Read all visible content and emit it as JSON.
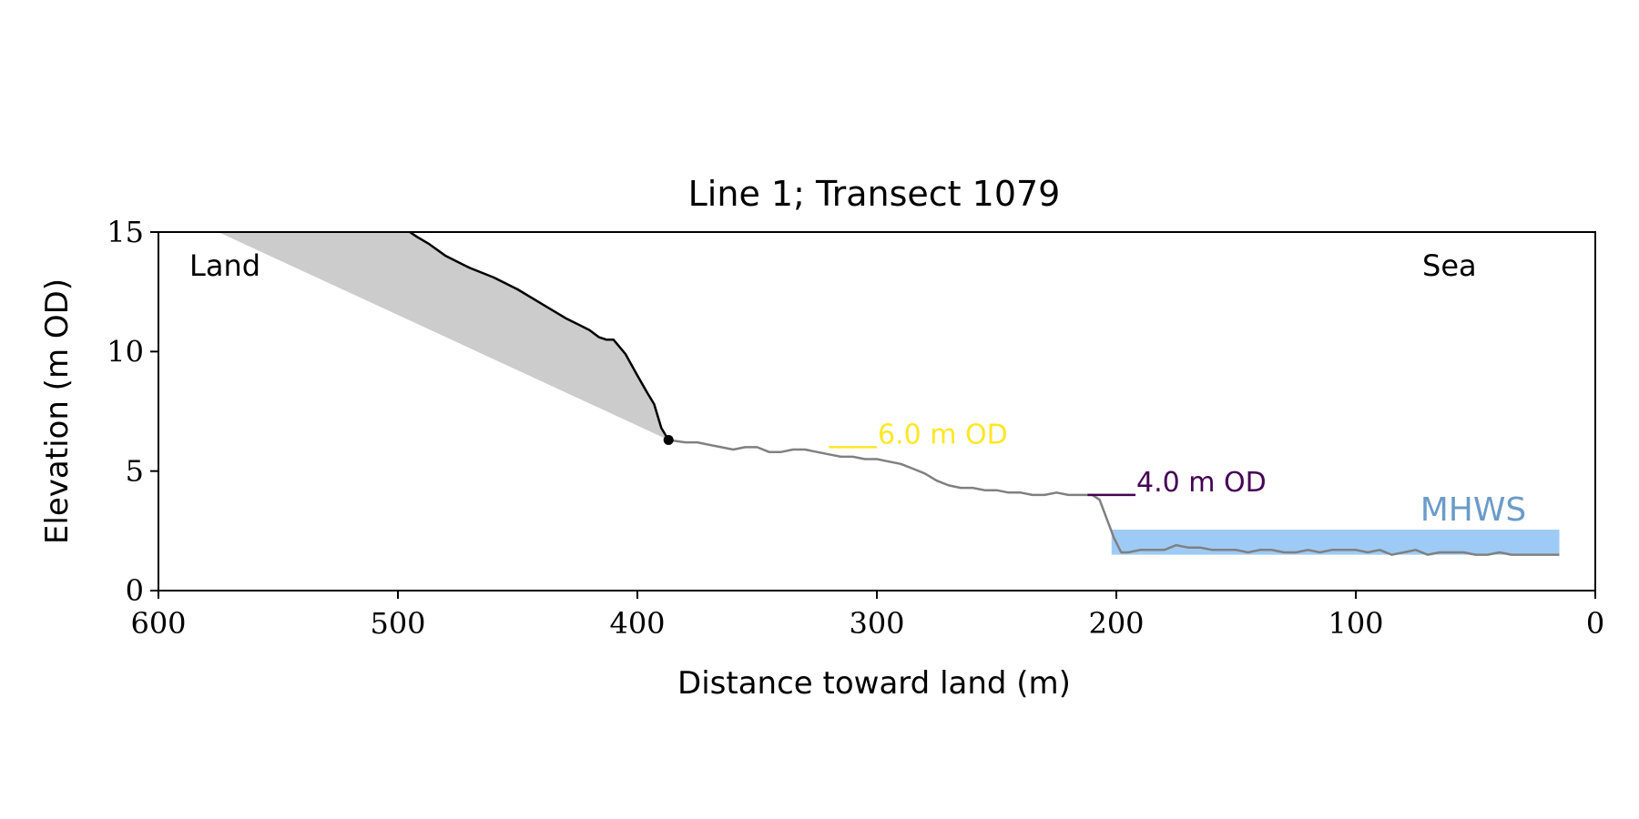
{
  "chart_data": {
    "type": "line",
    "title": "Line 1; Transect 1079",
    "xlabel": "Distance toward land (m)",
    "ylabel": "Elevation (m OD)",
    "xlim": [
      600,
      0
    ],
    "ylim": [
      0,
      15
    ],
    "x_ticks": [
      600,
      500,
      400,
      300,
      200,
      100,
      0
    ],
    "x_tick_labels": [
      "600",
      "500",
      "400",
      "300",
      "200",
      "100",
      "0"
    ],
    "y_ticks": [
      0,
      5,
      10,
      15
    ],
    "y_tick_labels": [
      "0",
      "5",
      "10",
      "15"
    ],
    "grid": false,
    "annotations": {
      "land": "Land",
      "sea": "Sea",
      "mhws": "MHWS",
      "level_6": "6.0 m OD",
      "level_4": "4.0 m OD"
    },
    "colors": {
      "cliff": "#000000",
      "beach": "#808080",
      "shadow": "#cccccc",
      "mhws_band": "#9ecbf6",
      "mhws_text": "#6b9bc9",
      "level_6": "#fde725",
      "level_4": "#440154"
    },
    "cliff_profile": {
      "x": [
        495,
        492,
        487,
        480,
        470,
        460,
        450,
        440,
        430,
        420,
        416,
        413,
        410,
        405,
        400,
        396,
        393,
        390,
        387
      ],
      "y": [
        15.0,
        14.8,
        14.5,
        14.0,
        13.5,
        13.1,
        12.6,
        12.0,
        11.4,
        10.9,
        10.6,
        10.5,
        10.5,
        9.9,
        9.0,
        8.3,
        7.8,
        6.8,
        6.3
      ]
    },
    "cliff_top": {
      "x": 387,
      "y": 6.3
    },
    "shadow_region": {
      "x": [
        575,
        497,
        387
      ],
      "y": [
        15.0,
        15.0,
        6.3
      ]
    },
    "beach_profile": {
      "x": [
        387,
        380,
        375,
        370,
        365,
        360,
        355,
        350,
        345,
        340,
        335,
        330,
        325,
        320,
        315,
        310,
        305,
        300,
        295,
        290,
        285,
        280,
        275,
        270,
        265,
        260,
        255,
        250,
        245,
        240,
        235,
        230,
        225,
        220,
        215,
        210,
        207,
        204,
        201,
        198,
        195,
        190,
        185,
        180,
        175,
        170,
        165,
        160,
        155,
        150,
        145,
        140,
        135,
        130,
        125,
        120,
        115,
        110,
        105,
        100,
        95,
        90,
        85,
        80,
        75,
        70,
        65,
        60,
        55,
        50,
        45,
        40,
        35,
        30,
        25,
        20,
        15
      ],
      "y": [
        6.3,
        6.2,
        6.2,
        6.1,
        6.0,
        5.9,
        6.0,
        6.0,
        5.8,
        5.8,
        5.9,
        5.9,
        5.8,
        5.7,
        5.6,
        5.6,
        5.5,
        5.5,
        5.4,
        5.3,
        5.1,
        4.9,
        4.6,
        4.4,
        4.3,
        4.3,
        4.2,
        4.2,
        4.1,
        4.1,
        4.0,
        4.0,
        4.1,
        4.0,
        4.0,
        4.0,
        3.8,
        3.0,
        2.2,
        1.6,
        1.6,
        1.7,
        1.7,
        1.7,
        1.9,
        1.8,
        1.8,
        1.7,
        1.7,
        1.7,
        1.6,
        1.7,
        1.7,
        1.6,
        1.6,
        1.7,
        1.6,
        1.7,
        1.7,
        1.7,
        1.6,
        1.7,
        1.5,
        1.6,
        1.7,
        1.5,
        1.6,
        1.6,
        1.6,
        1.5,
        1.5,
        1.6,
        1.5,
        1.5,
        1.5,
        1.5,
        1.5
      ]
    },
    "mhws_band": {
      "x_start": 202,
      "x_end": 15,
      "y_bottom": 1.5,
      "y_top": 2.55
    },
    "level_lines": [
      {
        "label": "6.0 m OD",
        "y": 6.0,
        "x_start": 320,
        "x_end": 300
      },
      {
        "label": "4.0 m OD",
        "y": 4.0,
        "x_start": 212,
        "x_end": 192
      }
    ]
  }
}
